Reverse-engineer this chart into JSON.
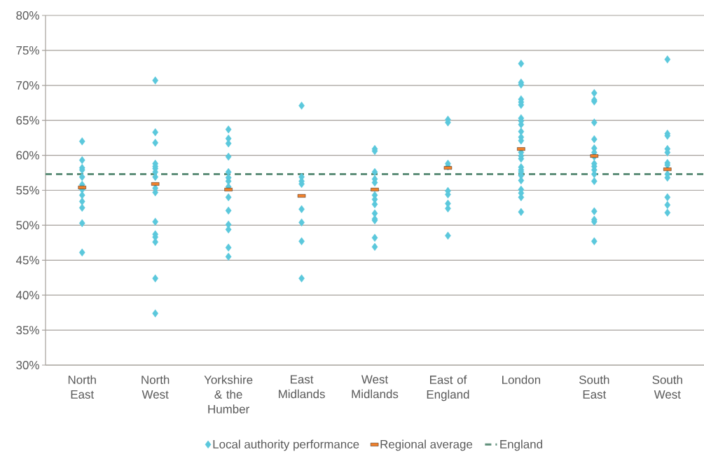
{
  "chart_data": {
    "type": "scatter",
    "categories": [
      "North East",
      "North West",
      "Yorkshire & the Humber",
      "East Midlands",
      "West Midlands",
      "East of England",
      "London",
      "South East",
      "South West"
    ],
    "series": [
      {
        "name": "Local authority performance",
        "color": "#5bc8dc",
        "marker": "diamond",
        "x": [
          "North East",
          "North East",
          "North East",
          "North East",
          "North East",
          "North East",
          "North East",
          "North East",
          "North East",
          "North East",
          "North East",
          "North East",
          "North West",
          "North West",
          "North West",
          "North West",
          "North West",
          "North West",
          "North West",
          "North West",
          "North West",
          "North West",
          "North West",
          "North West",
          "North West",
          "North West",
          "North West",
          "North West",
          "Yorkshire & the Humber",
          "Yorkshire & the Humber",
          "Yorkshire & the Humber",
          "Yorkshire & the Humber",
          "Yorkshire & the Humber",
          "Yorkshire & the Humber",
          "Yorkshire & the Humber",
          "Yorkshire & the Humber",
          "Yorkshire & the Humber",
          "Yorkshire & the Humber",
          "Yorkshire & the Humber",
          "Yorkshire & the Humber",
          "Yorkshire & the Humber",
          "Yorkshire & the Humber",
          "East Midlands",
          "East Midlands",
          "East Midlands",
          "East Midlands",
          "East Midlands",
          "East Midlands",
          "East Midlands",
          "East Midlands",
          "West Midlands",
          "West Midlands",
          "West Midlands",
          "West Midlands",
          "West Midlands",
          "West Midlands",
          "West Midlands",
          "West Midlands",
          "West Midlands",
          "West Midlands",
          "West Midlands",
          "West Midlands",
          "West Midlands",
          "East of England",
          "East of England",
          "East of England",
          "East of England",
          "East of England",
          "East of England",
          "East of England",
          "East of England",
          "East of England",
          "London",
          "London",
          "London",
          "London",
          "London",
          "London",
          "London",
          "London",
          "London",
          "London",
          "London",
          "London",
          "London",
          "London",
          "London",
          "London",
          "London",
          "London",
          "London",
          "London",
          "London",
          "London",
          "London",
          "London",
          "South East",
          "South East",
          "South East",
          "South East",
          "South East",
          "South East",
          "South East",
          "South East",
          "South East",
          "South East",
          "South East",
          "South East",
          "South East",
          "South East",
          "South East",
          "South East",
          "South East",
          "South West",
          "South West",
          "South West",
          "South West",
          "South West",
          "South West",
          "South West",
          "South West",
          "South West",
          "South West",
          "South West",
          "South West"
        ],
        "values": [
          62.0,
          59.3,
          58.2,
          57.9,
          56.9,
          55.8,
          55.1,
          54.3,
          53.4,
          52.5,
          50.3,
          46.1,
          70.7,
          63.3,
          61.8,
          58.8,
          58.4,
          58.1,
          57.6,
          56.9,
          55.3,
          54.7,
          50.5,
          48.7,
          48.3,
          47.6,
          42.4,
          37.4,
          63.7,
          62.4,
          61.7,
          59.8,
          57.6,
          56.8,
          56.3,
          55.5,
          54.0,
          52.1,
          50.1,
          49.4,
          46.8,
          45.5,
          67.1,
          56.9,
          56.3,
          55.9,
          52.3,
          50.4,
          47.7,
          42.4,
          60.9,
          60.6,
          57.6,
          56.6,
          56.1,
          54.3,
          53.7,
          53.0,
          51.7,
          50.9,
          50.7,
          48.2,
          46.9,
          65.1,
          64.7,
          58.8,
          58.4,
          54.9,
          54.4,
          53.1,
          52.4,
          48.5,
          73.1,
          70.4,
          70.1,
          68.0,
          67.6,
          67.2,
          65.3,
          64.9,
          64.4,
          63.4,
          62.6,
          62.1,
          60.4,
          59.9,
          59.5,
          58.3,
          57.9,
          57.6,
          57.1,
          56.4,
          55.1,
          54.6,
          54.0,
          51.9,
          68.9,
          67.9,
          67.7,
          64.7,
          62.3,
          61.0,
          60.4,
          59.8,
          58.8,
          58.4,
          57.9,
          57.3,
          56.3,
          52.0,
          50.8,
          50.5,
          47.7,
          73.7,
          63.1,
          62.8,
          60.9,
          60.4,
          58.9,
          58.6,
          57.3,
          56.8,
          54.0,
          52.9,
          51.8
        ]
      },
      {
        "name": "Regional average",
        "color": "#f0802b",
        "marker": "square",
        "x": [
          "North East",
          "North West",
          "Yorkshire & the Humber",
          "East Midlands",
          "West Midlands",
          "East of England",
          "London",
          "South East",
          "South West"
        ],
        "values": [
          55.4,
          55.9,
          55.1,
          54.2,
          55.1,
          58.2,
          60.9,
          59.9,
          58.0
        ]
      }
    ],
    "ref_lines": [
      {
        "axis": "y",
        "value": 57.3,
        "label": "England",
        "color": "#5f8f7a",
        "line_style": "dashed"
      }
    ],
    "ylim": [
      30,
      80
    ],
    "yticks": [
      {
        "value": 30,
        "label": "30%"
      },
      {
        "value": 35,
        "label": "35%"
      },
      {
        "value": 40,
        "label": "40%"
      },
      {
        "value": 45,
        "label": "45%"
      },
      {
        "value": 50,
        "label": "50%"
      },
      {
        "value": 55,
        "label": "55%"
      },
      {
        "value": 60,
        "label": "60%"
      },
      {
        "value": 65,
        "label": "65%"
      },
      {
        "value": 70,
        "label": "70%"
      },
      {
        "value": 75,
        "label": "75%"
      },
      {
        "value": 80,
        "label": "80%"
      }
    ],
    "grid": "y",
    "legend": "bottom"
  }
}
